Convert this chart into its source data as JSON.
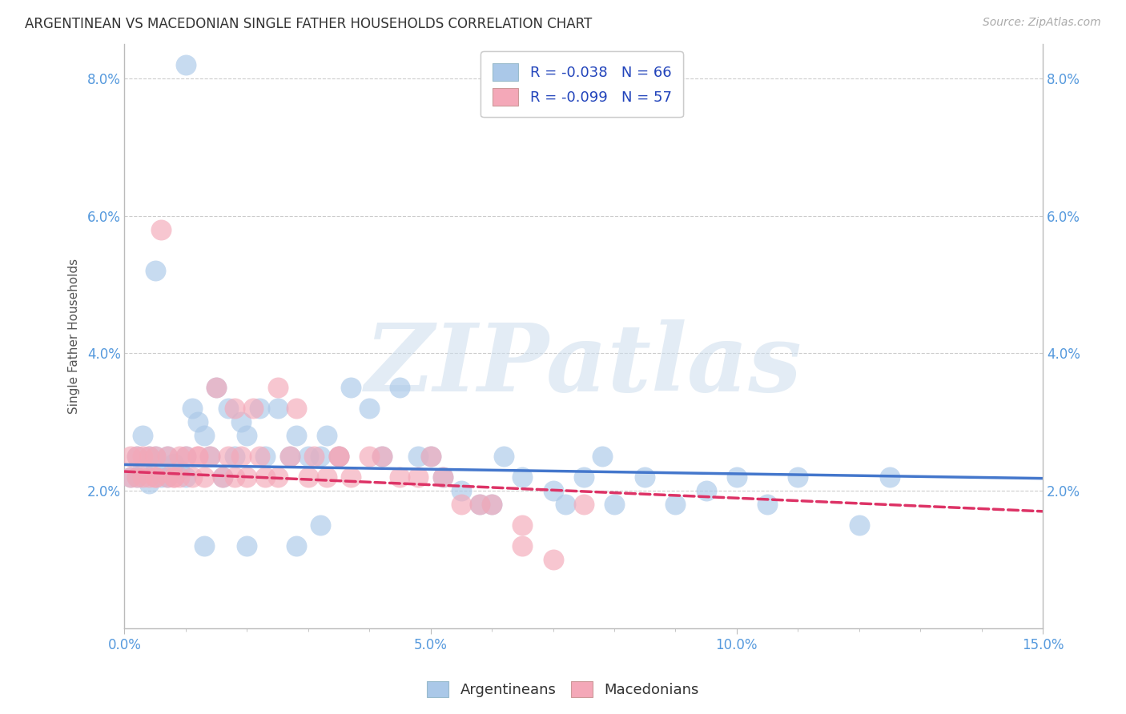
{
  "title": "ARGENTINEAN VS MACEDONIAN SINGLE FATHER HOUSEHOLDS CORRELATION CHART",
  "source": "Source: ZipAtlas.com",
  "ylabel": "Single Father Households",
  "xlim": [
    0.0,
    0.15
  ],
  "ylim": [
    0.0,
    0.085
  ],
  "bg_color": "#ffffff",
  "grid_color": "#cccccc",
  "watermark_text": "ZIPatlas",
  "legend_R_blue": "R = -0.038",
  "legend_N_blue": "N = 66",
  "legend_R_pink": "R = -0.099",
  "legend_N_pink": "N = 57",
  "legend_label_blue": "Argentineans",
  "legend_label_pink": "Macedonians",
  "blue_color": "#aac8e8",
  "pink_color": "#f4a8b8",
  "blue_line_color": "#4477cc",
  "pink_line_color": "#dd3366",
  "title_color": "#333333",
  "source_color": "#aaaaaa",
  "axis_tick_color": "#5599dd",
  "legend_text_color": "#2244bb",
  "blue_x": [
    0.001,
    0.002,
    0.002,
    0.003,
    0.003,
    0.004,
    0.004,
    0.005,
    0.005,
    0.006,
    0.007,
    0.007,
    0.008,
    0.009,
    0.01,
    0.01,
    0.011,
    0.012,
    0.013,
    0.014,
    0.015,
    0.016,
    0.017,
    0.018,
    0.019,
    0.02,
    0.022,
    0.023,
    0.025,
    0.027,
    0.028,
    0.03,
    0.032,
    0.033,
    0.035,
    0.037,
    0.04,
    0.042,
    0.045,
    0.048,
    0.05,
    0.052,
    0.055,
    0.058,
    0.06,
    0.062,
    0.065,
    0.07,
    0.072,
    0.075,
    0.078,
    0.08,
    0.085,
    0.09,
    0.095,
    0.1,
    0.105,
    0.11,
    0.12,
    0.125,
    0.013,
    0.02,
    0.028,
    0.032,
    0.01,
    0.005
  ],
  "blue_y": [
    0.022,
    0.025,
    0.022,
    0.023,
    0.028,
    0.025,
    0.021,
    0.023,
    0.025,
    0.022,
    0.025,
    0.022,
    0.024,
    0.023,
    0.025,
    0.022,
    0.032,
    0.03,
    0.028,
    0.025,
    0.035,
    0.022,
    0.032,
    0.025,
    0.03,
    0.028,
    0.032,
    0.025,
    0.032,
    0.025,
    0.028,
    0.025,
    0.025,
    0.028,
    0.025,
    0.035,
    0.032,
    0.025,
    0.035,
    0.025,
    0.025,
    0.022,
    0.02,
    0.018,
    0.018,
    0.025,
    0.022,
    0.02,
    0.018,
    0.022,
    0.025,
    0.018,
    0.022,
    0.018,
    0.02,
    0.022,
    0.018,
    0.022,
    0.015,
    0.022,
    0.012,
    0.012,
    0.012,
    0.015,
    0.082,
    0.052
  ],
  "pink_x": [
    0.001,
    0.001,
    0.002,
    0.002,
    0.003,
    0.003,
    0.004,
    0.004,
    0.005,
    0.005,
    0.006,
    0.007,
    0.007,
    0.008,
    0.009,
    0.009,
    0.01,
    0.011,
    0.012,
    0.013,
    0.014,
    0.015,
    0.016,
    0.017,
    0.018,
    0.019,
    0.02,
    0.021,
    0.022,
    0.023,
    0.025,
    0.027,
    0.028,
    0.03,
    0.031,
    0.033,
    0.035,
    0.037,
    0.04,
    0.042,
    0.045,
    0.048,
    0.05,
    0.052,
    0.055,
    0.058,
    0.06,
    0.065,
    0.07,
    0.075,
    0.005,
    0.008,
    0.012,
    0.018,
    0.025,
    0.035,
    0.065
  ],
  "pink_y": [
    0.022,
    0.025,
    0.022,
    0.025,
    0.022,
    0.025,
    0.022,
    0.025,
    0.022,
    0.025,
    0.058,
    0.022,
    0.025,
    0.022,
    0.025,
    0.022,
    0.025,
    0.022,
    0.025,
    0.022,
    0.025,
    0.035,
    0.022,
    0.025,
    0.022,
    0.025,
    0.022,
    0.032,
    0.025,
    0.022,
    0.022,
    0.025,
    0.032,
    0.022,
    0.025,
    0.022,
    0.025,
    0.022,
    0.025,
    0.025,
    0.022,
    0.022,
    0.025,
    0.022,
    0.018,
    0.018,
    0.018,
    0.015,
    0.01,
    0.018,
    0.022,
    0.022,
    0.025,
    0.032,
    0.035,
    0.025,
    0.012
  ],
  "blue_line_x0": 0.0,
  "blue_line_y0": 0.0238,
  "blue_line_x1": 0.15,
  "blue_line_y1": 0.0218,
  "pink_line_x0": 0.0,
  "pink_line_y0": 0.0228,
  "pink_line_x1": 0.15,
  "pink_line_y1": 0.017
}
